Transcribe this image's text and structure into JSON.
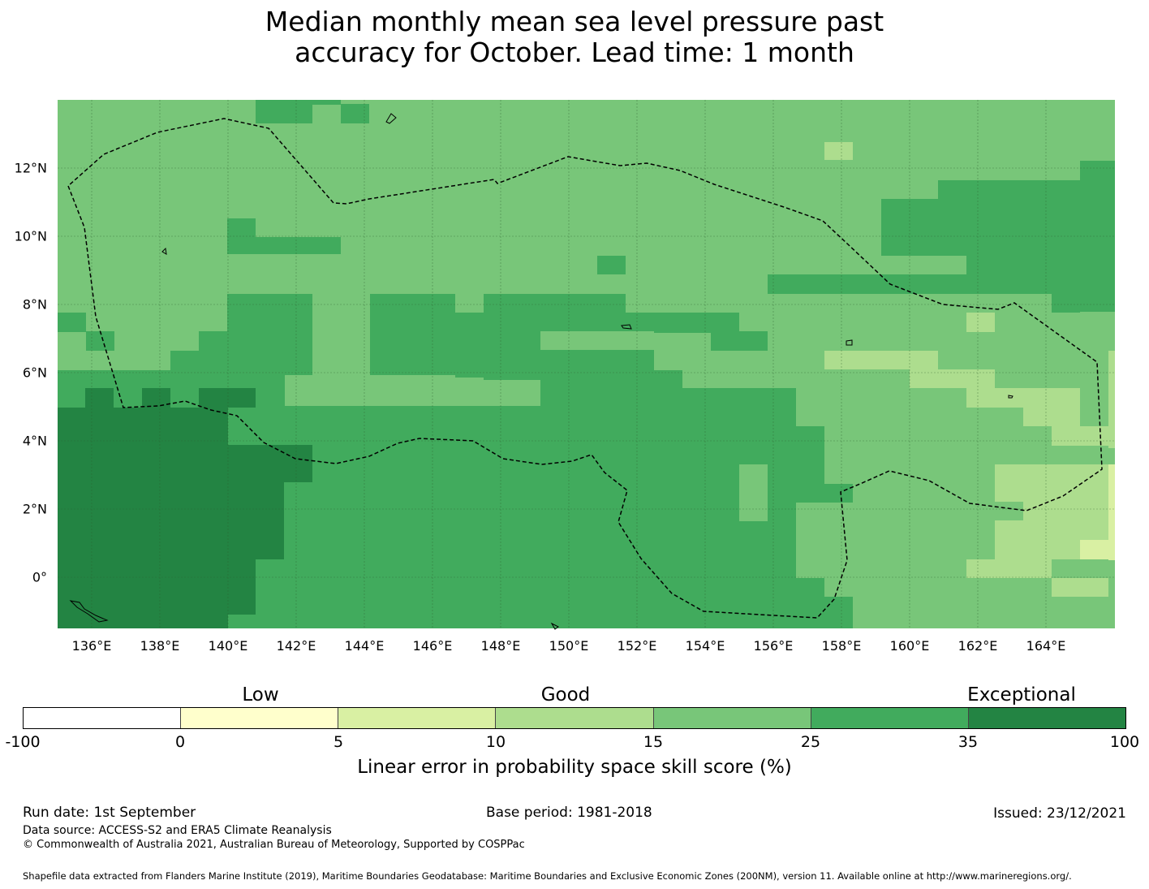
{
  "title_line1": "Median monthly mean sea level pressure past",
  "title_line2": "accuracy for October. Lead time: 1 month",
  "map": {
    "lon_labels": [
      "136°E",
      "138°E",
      "140°E",
      "142°E",
      "144°E",
      "146°E",
      "148°E",
      "150°E",
      "152°E",
      "154°E",
      "156°E",
      "158°E",
      "160°E",
      "162°E",
      "164°E"
    ],
    "lat_labels": [
      "12°N",
      "10°N",
      "8°N",
      "6°N",
      "4°N",
      "2°N",
      "0°"
    ],
    "background_color": "#78c679"
  },
  "colorbar": {
    "categories": [
      "Low",
      "Good",
      "Exceptional"
    ],
    "ticks": [
      "-100",
      "0",
      "5",
      "10",
      "15",
      "25",
      "35",
      "100"
    ],
    "colors": [
      "#ffffff",
      "#ffffcc",
      "#d9f0a3",
      "#addd8e",
      "#78c679",
      "#41ab5d",
      "#238443"
    ],
    "label": "Linear error in probability space skill score (%)"
  },
  "footer": {
    "run_date": "Run date: 1st September",
    "base_period": "Base period: 1981-2018",
    "issued": "Issued: 23/12/2021",
    "data_source": "Data source: ACCESS-S2 and ERA5 Climate Reanalysis",
    "copyright": "© Commonwealth of Australia 2021, Australian Bureau of Meteorology, Supported by COSPPac",
    "shapefile": "Shapefile data extracted from Flanders Marine Institute (2019), Maritime Boundaries Geodatabase: Maritime Boundaries and Exclusive Economic Zones (200NM), version 11. Available online at http://www.marineregions.org/."
  }
}
